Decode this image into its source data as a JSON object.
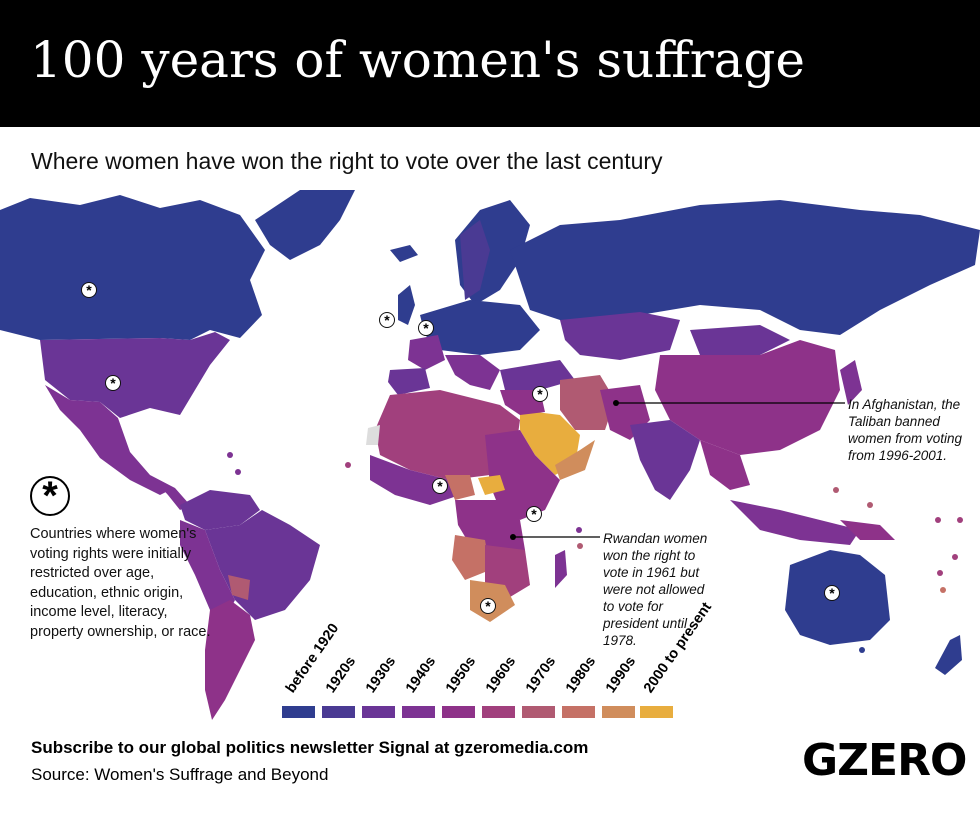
{
  "title": "100 years of women's suffrage",
  "subtitle": "Where women have won the right to vote over the last century",
  "legend": {
    "items": [
      {
        "label": "before 1920",
        "color": "#2f3d8f"
      },
      {
        "label": "1920s",
        "color": "#4a3a93"
      },
      {
        "label": "1930s",
        "color": "#6a3596"
      },
      {
        "label": "1940s",
        "color": "#7d3393"
      },
      {
        "label": "1950s",
        "color": "#8e3289"
      },
      {
        "label": "1960s",
        "color": "#a1407d"
      },
      {
        "label": "1970s",
        "color": "#b05a72"
      },
      {
        "label": "1980s",
        "color": "#c57166"
      },
      {
        "label": "1990s",
        "color": "#d08d5c"
      },
      {
        "label": "2000 to present",
        "color": "#e8ad3e"
      }
    ]
  },
  "star_note": "Countries where women's voting rights were initially restricted over age, education, ethnic origin, income level, literacy, property ownership, or race.",
  "annotations": {
    "afghanistan": "In Afghanistan, the Taliban banned women from voting from 1996-2001.",
    "rwanda": "Rwandan women won the right to vote in 1961 but were not allowed to vote for president until 1978."
  },
  "footer": {
    "subscribe": "Subscribe to our global politics newsletter Signal at gzeromedia.com",
    "source": "Source: Women's Suffrage and Beyond",
    "logo": "GZERO"
  }
}
